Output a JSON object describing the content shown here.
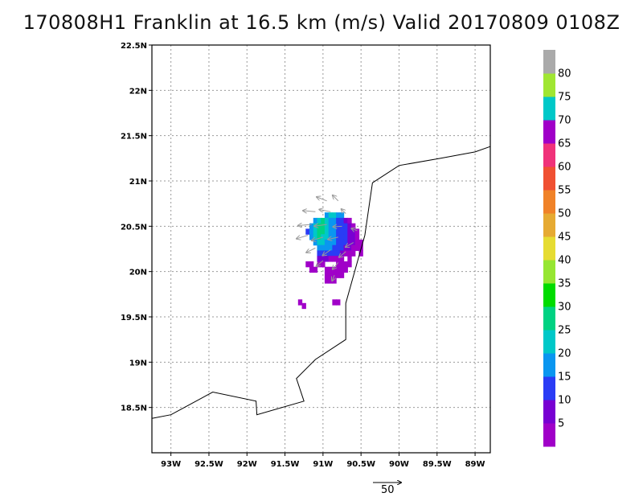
{
  "title": "170808H1 Franklin at 16.5 km (m/s) Valid 20170809 0108Z",
  "map": {
    "lon_range": [
      -93.25,
      -88.8
    ],
    "lat_range": [
      18.0,
      22.5
    ],
    "lat_ticks": [
      {
        "value": 22.5,
        "label": "22.5N"
      },
      {
        "value": 22.0,
        "label": "22N"
      },
      {
        "value": 21.5,
        "label": "21.5N"
      },
      {
        "value": 21.0,
        "label": "21N"
      },
      {
        "value": 20.5,
        "label": "20.5N"
      },
      {
        "value": 20.0,
        "label": "20N"
      },
      {
        "value": 19.5,
        "label": "19.5N"
      },
      {
        "value": 19.0,
        "label": "19N"
      },
      {
        "value": 18.5,
        "label": "18.5N"
      }
    ],
    "lon_ticks": [
      {
        "value": -93.0,
        "label": "93W"
      },
      {
        "value": -92.5,
        "label": "92.5W"
      },
      {
        "value": -92.0,
        "label": "92W"
      },
      {
        "value": -91.5,
        "label": "91.5W"
      },
      {
        "value": -91.0,
        "label": "91W"
      },
      {
        "value": -90.5,
        "label": "90.5W"
      },
      {
        "value": -90.0,
        "label": "90W"
      },
      {
        "value": -89.5,
        "label": "89.5W"
      },
      {
        "value": -89.0,
        "label": "89W"
      }
    ],
    "grid": "dotted",
    "coastline": [
      [
        -93.25,
        18.38
      ],
      [
        -93.0,
        18.42
      ],
      [
        -92.45,
        18.67
      ],
      [
        -91.88,
        18.57
      ],
      [
        -91.87,
        18.42
      ],
      [
        -91.25,
        18.57
      ],
      [
        -91.35,
        18.82
      ],
      [
        -91.1,
        19.03
      ],
      [
        -90.7,
        19.25
      ],
      [
        -90.7,
        19.65
      ],
      [
        -90.55,
        20.1
      ],
      [
        -90.45,
        20.4
      ],
      [
        -90.35,
        20.98
      ],
      [
        -90.0,
        21.17
      ],
      [
        -89.45,
        21.25
      ],
      [
        -89.0,
        21.32
      ],
      [
        -88.8,
        21.38
      ]
    ]
  },
  "colorbar": {
    "levels": [
      "5",
      "10",
      "15",
      "20",
      "25",
      "30",
      "35",
      "40",
      "45",
      "50",
      "55",
      "60",
      "65",
      "70",
      "75",
      "80"
    ],
    "colors": [
      "#a000c8",
      "#7800d2",
      "#2a3cf5",
      "#0a96f0",
      "#00c8c8",
      "#00d282",
      "#00dc00",
      "#96e632",
      "#e6dc32",
      "#e6aa32",
      "#f08228",
      "#f05032",
      "#f0327a",
      "#a000c8",
      "#00c8c8",
      "#a0e632",
      "#aaaaaa"
    ]
  },
  "reference_vector": {
    "label": "50"
  },
  "wind_cells": [
    {
      "lon": -90.95,
      "lat": 20.62,
      "c": 3
    },
    {
      "lon": -90.9,
      "lat": 20.62,
      "c": 4
    },
    {
      "lon": -90.85,
      "lat": 20.62,
      "c": 4
    },
    {
      "lon": -90.8,
      "lat": 20.62,
      "c": 3
    },
    {
      "lon": -90.75,
      "lat": 20.62,
      "c": 3
    },
    {
      "lon": -91.1,
      "lat": 20.56,
      "c": 3
    },
    {
      "lon": -91.05,
      "lat": 20.56,
      "c": 4
    },
    {
      "lon": -91.0,
      "lat": 20.56,
      "c": 5
    },
    {
      "lon": -90.95,
      "lat": 20.56,
      "c": 4
    },
    {
      "lon": -90.9,
      "lat": 20.56,
      "c": 3
    },
    {
      "lon": -90.85,
      "lat": 20.56,
      "c": 3
    },
    {
      "lon": -90.8,
      "lat": 20.56,
      "c": 2
    },
    {
      "lon": -90.75,
      "lat": 20.56,
      "c": 2
    },
    {
      "lon": -90.7,
      "lat": 20.56,
      "c": 1
    },
    {
      "lon": -90.65,
      "lat": 20.56,
      "c": 0
    },
    {
      "lon": -91.15,
      "lat": 20.5,
      "c": 3
    },
    {
      "lon": -91.1,
      "lat": 20.5,
      "c": 4
    },
    {
      "lon": -91.05,
      "lat": 20.5,
      "c": 5
    },
    {
      "lon": -91.0,
      "lat": 20.5,
      "c": 5
    },
    {
      "lon": -90.95,
      "lat": 20.5,
      "c": 4
    },
    {
      "lon": -90.9,
      "lat": 20.5,
      "c": 3
    },
    {
      "lon": -90.85,
      "lat": 20.5,
      "c": 3
    },
    {
      "lon": -90.8,
      "lat": 20.5,
      "c": 2
    },
    {
      "lon": -90.75,
      "lat": 20.5,
      "c": 2
    },
    {
      "lon": -90.7,
      "lat": 20.5,
      "c": 2
    },
    {
      "lon": -90.65,
      "lat": 20.5,
      "c": 1
    },
    {
      "lon": -90.6,
      "lat": 20.5,
      "c": 0
    },
    {
      "lon": -91.2,
      "lat": 20.44,
      "c": 2
    },
    {
      "lon": -91.15,
      "lat": 20.44,
      "c": 3
    },
    {
      "lon": -91.1,
      "lat": 20.44,
      "c": 4
    },
    {
      "lon": -91.05,
      "lat": 20.44,
      "c": 5
    },
    {
      "lon": -91.0,
      "lat": 20.44,
      "c": 5
    },
    {
      "lon": -90.95,
      "lat": 20.44,
      "c": 4
    },
    {
      "lon": -90.9,
      "lat": 20.44,
      "c": 3
    },
    {
      "lon": -90.85,
      "lat": 20.44,
      "c": 3
    },
    {
      "lon": -90.8,
      "lat": 20.44,
      "c": 2
    },
    {
      "lon": -90.75,
      "lat": 20.44,
      "c": 2
    },
    {
      "lon": -90.7,
      "lat": 20.44,
      "c": 2
    },
    {
      "lon": -90.65,
      "lat": 20.44,
      "c": 1
    },
    {
      "lon": -90.6,
      "lat": 20.44,
      "c": 1
    },
    {
      "lon": -90.55,
      "lat": 20.44,
      "c": 0
    },
    {
      "lon": -91.15,
      "lat": 20.38,
      "c": 3
    },
    {
      "lon": -91.1,
      "lat": 20.38,
      "c": 4
    },
    {
      "lon": -91.05,
      "lat": 20.38,
      "c": 5
    },
    {
      "lon": -91.0,
      "lat": 20.38,
      "c": 4
    },
    {
      "lon": -90.95,
      "lat": 20.38,
      "c": 4
    },
    {
      "lon": -90.9,
      "lat": 20.38,
      "c": 3
    },
    {
      "lon": -90.85,
      "lat": 20.38,
      "c": 3
    },
    {
      "lon": -90.8,
      "lat": 20.38,
      "c": 2
    },
    {
      "lon": -90.75,
      "lat": 20.38,
      "c": 2
    },
    {
      "lon": -90.7,
      "lat": 20.38,
      "c": 2
    },
    {
      "lon": -90.65,
      "lat": 20.38,
      "c": 1
    },
    {
      "lon": -90.6,
      "lat": 20.38,
      "c": 1
    },
    {
      "lon": -90.55,
      "lat": 20.38,
      "c": 0
    },
    {
      "lon": -91.1,
      "lat": 20.32,
      "c": 3
    },
    {
      "lon": -91.05,
      "lat": 20.32,
      "c": 4
    },
    {
      "lon": -91.0,
      "lat": 20.32,
      "c": 4
    },
    {
      "lon": -90.95,
      "lat": 20.32,
      "c": 3
    },
    {
      "lon": -90.9,
      "lat": 20.32,
      "c": 3
    },
    {
      "lon": -90.85,
      "lat": 20.32,
      "c": 3
    },
    {
      "lon": -90.8,
      "lat": 20.32,
      "c": 2
    },
    {
      "lon": -90.75,
      "lat": 20.32,
      "c": 2
    },
    {
      "lon": -90.7,
      "lat": 20.32,
      "c": 2
    },
    {
      "lon": -90.65,
      "lat": 20.32,
      "c": 1
    },
    {
      "lon": -90.6,
      "lat": 20.32,
      "c": 1
    },
    {
      "lon": -90.55,
      "lat": 20.32,
      "c": 0
    },
    {
      "lon": -90.5,
      "lat": 20.32,
      "c": 0
    },
    {
      "lon": -91.05,
      "lat": 20.26,
      "c": 3
    },
    {
      "lon": -91.0,
      "lat": 20.26,
      "c": 3
    },
    {
      "lon": -90.95,
      "lat": 20.26,
      "c": 3
    },
    {
      "lon": -90.9,
      "lat": 20.26,
      "c": 3
    },
    {
      "lon": -90.85,
      "lat": 20.26,
      "c": 2
    },
    {
      "lon": -90.8,
      "lat": 20.26,
      "c": 2
    },
    {
      "lon": -90.75,
      "lat": 20.26,
      "c": 2
    },
    {
      "lon": -90.7,
      "lat": 20.26,
      "c": 1
    },
    {
      "lon": -90.65,
      "lat": 20.26,
      "c": 1
    },
    {
      "lon": -90.6,
      "lat": 20.26,
      "c": 0
    },
    {
      "lon": -90.55,
      "lat": 20.26,
      "c": 0
    },
    {
      "lon": -90.5,
      "lat": 20.26,
      "c": 0
    },
    {
      "lon": -91.05,
      "lat": 20.2,
      "c": 2
    },
    {
      "lon": -91.0,
      "lat": 20.2,
      "c": 2
    },
    {
      "lon": -90.95,
      "lat": 20.2,
      "c": 2
    },
    {
      "lon": -90.9,
      "lat": 20.2,
      "c": 2
    },
    {
      "lon": -90.85,
      "lat": 20.2,
      "c": 2
    },
    {
      "lon": -90.8,
      "lat": 20.2,
      "c": 2
    },
    {
      "lon": -90.75,
      "lat": 20.2,
      "c": 1
    },
    {
      "lon": -90.7,
      "lat": 20.2,
      "c": 0
    },
    {
      "lon": -90.65,
      "lat": 20.2,
      "c": 0
    },
    {
      "lon": -90.6,
      "lat": 20.2,
      "c": 0
    },
    {
      "lon": -90.5,
      "lat": 20.2,
      "c": 0
    },
    {
      "lon": -91.05,
      "lat": 20.14,
      "c": 1
    },
    {
      "lon": -91.0,
      "lat": 20.14,
      "c": 1
    },
    {
      "lon": -90.95,
      "lat": 20.14,
      "c": 1
    },
    {
      "lon": -90.9,
      "lat": 20.14,
      "c": 0
    },
    {
      "lon": -90.85,
      "lat": 20.14,
      "c": 0
    },
    {
      "lon": -90.8,
      "lat": 20.14,
      "c": 0
    },
    {
      "lon": -90.75,
      "lat": 20.14,
      "c": 0
    },
    {
      "lon": -90.65,
      "lat": 20.14,
      "c": 0
    },
    {
      "lon": -91.2,
      "lat": 20.08,
      "c": 0
    },
    {
      "lon": -91.15,
      "lat": 20.08,
      "c": 0
    },
    {
      "lon": -91.05,
      "lat": 20.08,
      "c": 0
    },
    {
      "lon": -91.0,
      "lat": 20.08,
      "c": 0
    },
    {
      "lon": -90.8,
      "lat": 20.08,
      "c": 0
    },
    {
      "lon": -90.75,
      "lat": 20.08,
      "c": 0
    },
    {
      "lon": -90.7,
      "lat": 20.08,
      "c": 0
    },
    {
      "lon": -90.65,
      "lat": 20.08,
      "c": 0
    },
    {
      "lon": -91.15,
      "lat": 20.02,
      "c": 0
    },
    {
      "lon": -91.1,
      "lat": 20.02,
      "c": 0
    },
    {
      "lon": -90.95,
      "lat": 20.02,
      "c": 0
    },
    {
      "lon": -90.9,
      "lat": 20.02,
      "c": 0
    },
    {
      "lon": -90.85,
      "lat": 20.02,
      "c": 0
    },
    {
      "lon": -90.8,
      "lat": 20.02,
      "c": 0
    },
    {
      "lon": -90.75,
      "lat": 20.02,
      "c": 0
    },
    {
      "lon": -90.7,
      "lat": 20.02,
      "c": 0
    },
    {
      "lon": -90.95,
      "lat": 19.96,
      "c": 0
    },
    {
      "lon": -90.9,
      "lat": 19.96,
      "c": 0
    },
    {
      "lon": -90.85,
      "lat": 19.96,
      "c": 0
    },
    {
      "lon": -90.8,
      "lat": 19.96,
      "c": 0
    },
    {
      "lon": -90.75,
      "lat": 19.96,
      "c": 0
    },
    {
      "lon": -90.95,
      "lat": 19.9,
      "c": 0
    },
    {
      "lon": -90.9,
      "lat": 19.9,
      "c": 0
    },
    {
      "lon": -90.85,
      "lat": 19.9,
      "c": 0
    },
    {
      "lon": -91.3,
      "lat": 19.66,
      "c": 0
    },
    {
      "lon": -91.25,
      "lat": 19.62,
      "c": 0
    },
    {
      "lon": -90.85,
      "lat": 19.66,
      "c": 0
    },
    {
      "lon": -90.8,
      "lat": 19.66,
      "c": 0
    }
  ],
  "wind_vectors": [
    {
      "lon": -90.95,
      "lat": 20.78,
      "u": -18,
      "v": 7
    },
    {
      "lon": -90.8,
      "lat": 20.78,
      "u": -10,
      "v": 10
    },
    {
      "lon": -91.1,
      "lat": 20.66,
      "u": -22,
      "v": 2
    },
    {
      "lon": -90.9,
      "lat": 20.66,
      "u": -20,
      "v": 4
    },
    {
      "lon": -90.7,
      "lat": 20.64,
      "u": -8,
      "v": 8
    },
    {
      "lon": -91.15,
      "lat": 20.52,
      "u": -24,
      "v": -2
    },
    {
      "lon": -90.95,
      "lat": 20.52,
      "u": -22,
      "v": -3
    },
    {
      "lon": -90.75,
      "lat": 20.5,
      "u": -16,
      "v": -1
    },
    {
      "lon": -90.55,
      "lat": 20.45,
      "u": -10,
      "v": 4
    },
    {
      "lon": -91.2,
      "lat": 20.4,
      "u": -20,
      "v": -6
    },
    {
      "lon": -91.0,
      "lat": 20.38,
      "u": -20,
      "v": -6
    },
    {
      "lon": -90.8,
      "lat": 20.38,
      "u": -18,
      "v": -4
    },
    {
      "lon": -90.6,
      "lat": 20.32,
      "u": -14,
      "v": -8
    },
    {
      "lon": -91.1,
      "lat": 20.26,
      "u": -16,
      "v": -8
    },
    {
      "lon": -90.9,
      "lat": 20.24,
      "u": -14,
      "v": -10
    },
    {
      "lon": -90.7,
      "lat": 20.22,
      "u": -12,
      "v": -10
    },
    {
      "lon": -91.0,
      "lat": 20.12,
      "u": -12,
      "v": -10
    },
    {
      "lon": -90.8,
      "lat": 20.1,
      "u": -10,
      "v": -12
    },
    {
      "lon": -90.85,
      "lat": 19.96,
      "u": -4,
      "v": -10
    }
  ]
}
